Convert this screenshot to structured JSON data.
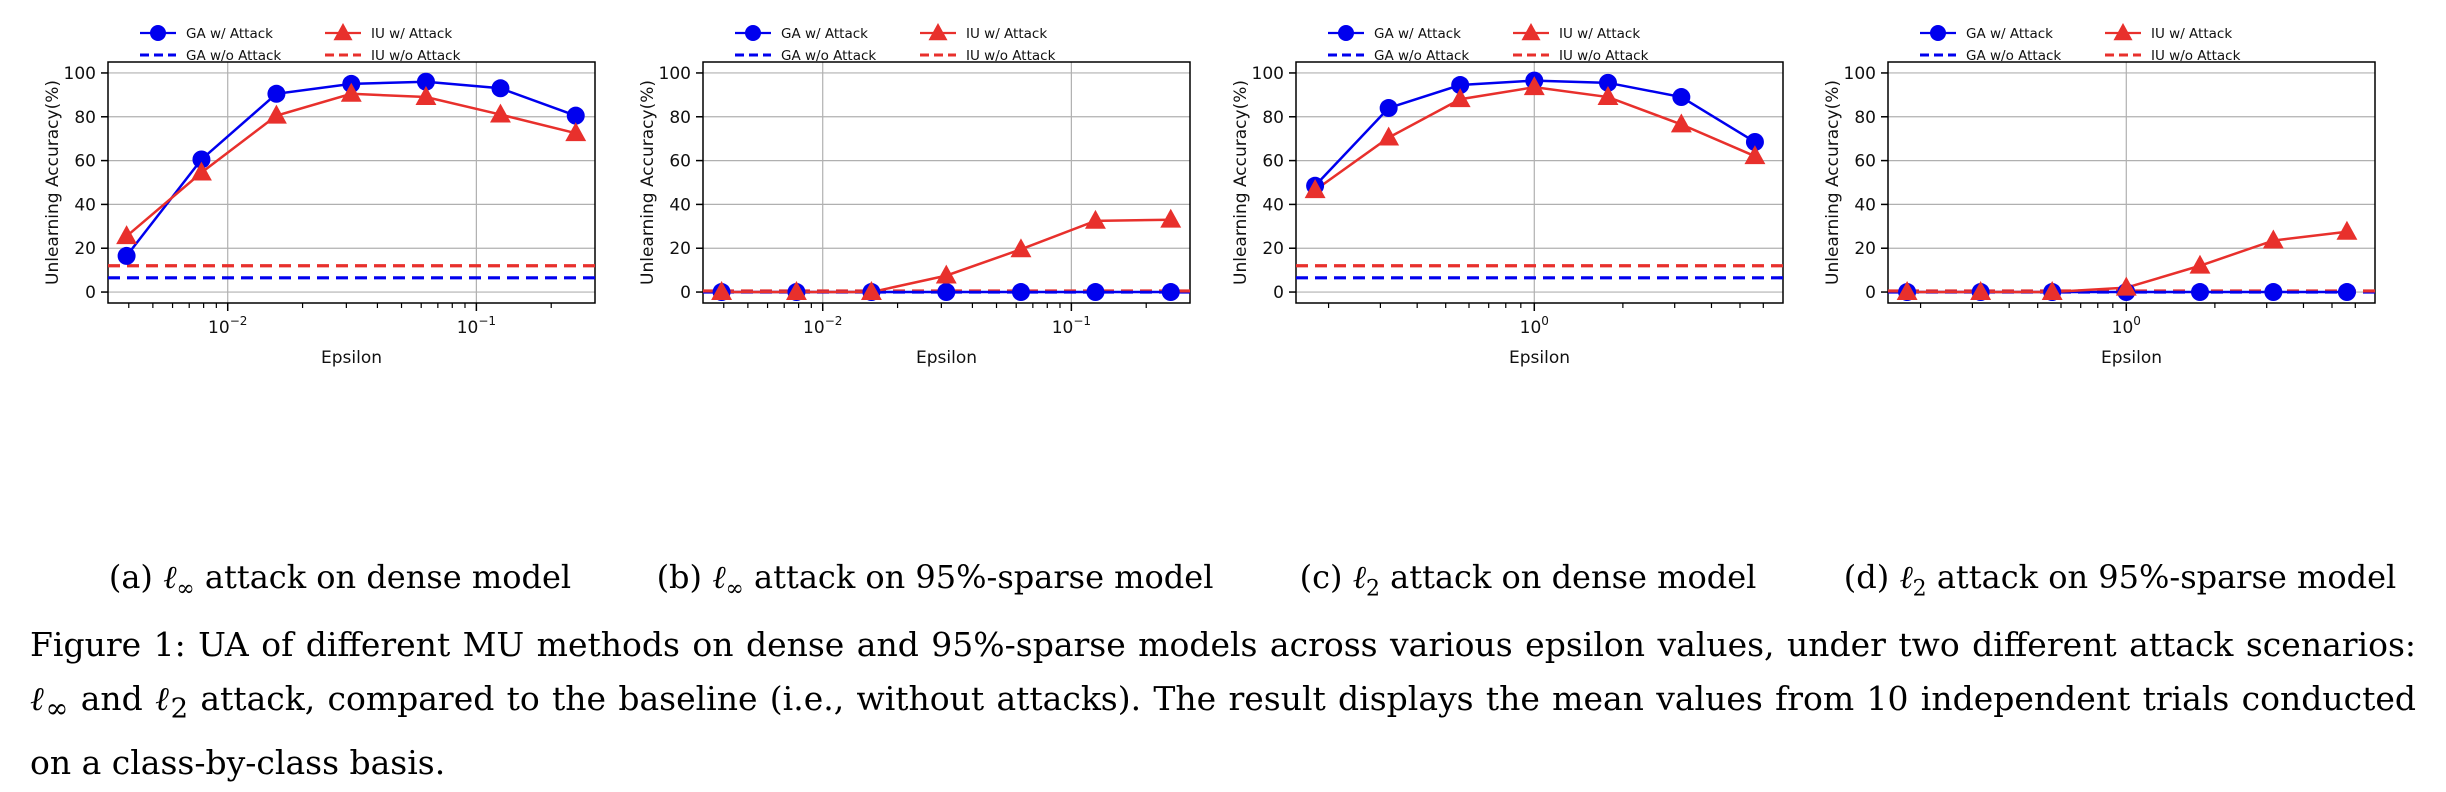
{
  "colors": {
    "ga": "#0000ee",
    "iu": "#e8302c",
    "grid": "#b0b0b0",
    "axis": "#000000"
  },
  "chart_data": [
    {
      "type": "line",
      "xscale": "log",
      "xlabel": "Epsilon",
      "ylabel": "Unlearning Accuracy(%)",
      "ylim": [
        -5,
        105
      ],
      "yticks": [
        0,
        20,
        40,
        60,
        80,
        100
      ],
      "xlim": [
        0.0033,
        0.3
      ],
      "xticks": [
        {
          "value": 0.01,
          "base": "10",
          "exp": "−2"
        },
        {
          "value": 0.1,
          "base": "10",
          "exp": "−1"
        }
      ],
      "x": [
        0.00392,
        0.00784,
        0.0157,
        0.0314,
        0.0627,
        0.125,
        0.251
      ],
      "series": [
        {
          "name": "GA w/ Attack",
          "values": [
            16.5,
            60.5,
            90.5,
            95,
            96,
            93,
            80.5
          ]
        },
        {
          "name": "IU w/ Attack",
          "values": [
            25.5,
            54.5,
            80.5,
            90.5,
            89,
            81,
            72.5
          ]
        }
      ],
      "baselines": [
        {
          "name": "GA w/o Attack",
          "value": 6.5
        },
        {
          "name": "IU w/o Attack",
          "value": 12
        }
      ],
      "legend": "top-center",
      "grid": true,
      "caption": {
        "label": "(a)",
        "norm": "ℓ",
        "sub": "∞",
        "rest": " attack on dense model"
      }
    },
    {
      "type": "line",
      "xscale": "log",
      "xlabel": "Epsilon",
      "ylabel": "Unlearning Accuracy(%)",
      "ylim": [
        -5,
        105
      ],
      "yticks": [
        0,
        20,
        40,
        60,
        80,
        100
      ],
      "xlim": [
        0.0033,
        0.3
      ],
      "xticks": [
        {
          "value": 0.01,
          "base": "10",
          "exp": "−2"
        },
        {
          "value": 0.1,
          "base": "10",
          "exp": "−1"
        }
      ],
      "x": [
        0.00392,
        0.00784,
        0.0157,
        0.0314,
        0.0627,
        0.125,
        0.251
      ],
      "series": [
        {
          "name": "GA w/ Attack",
          "values": [
            0,
            0,
            0,
            0,
            0,
            0,
            0
          ]
        },
        {
          "name": "IU w/ Attack",
          "values": [
            0,
            0,
            0,
            7.5,
            19.5,
            32.5,
            33
          ]
        }
      ],
      "baselines": [
        {
          "name": "GA w/o Attack",
          "value": 0
        },
        {
          "name": "IU w/o Attack",
          "value": 0.5
        }
      ],
      "legend": "top-center",
      "grid": true,
      "caption": {
        "label": "(b)",
        "norm": "ℓ",
        "sub": "∞",
        "rest": " attack on 95%-sparse model"
      }
    },
    {
      "type": "line",
      "xscale": "log",
      "xlabel": "Epsilon",
      "ylabel": "Unlearning Accuracy(%)",
      "ylim": [
        -5,
        105
      ],
      "yticks": [
        0,
        20,
        40,
        60,
        80,
        100
      ],
      "xlim": [
        0.155,
        7.0
      ],
      "xticks": [
        {
          "value": 1,
          "base": "10",
          "exp": "0"
        }
      ],
      "x": [
        0.18,
        0.32,
        0.56,
        1.0,
        1.78,
        3.16,
        5.62
      ],
      "series": [
        {
          "name": "GA w/ Attack",
          "values": [
            48.5,
            84,
            94.5,
            96.5,
            95.5,
            89,
            68.5
          ]
        },
        {
          "name": "IU w/ Attack",
          "values": [
            46.5,
            70.5,
            88,
            93.5,
            89,
            76.5,
            62
          ]
        }
      ],
      "baselines": [
        {
          "name": "GA w/o Attack",
          "value": 6.5
        },
        {
          "name": "IU w/o Attack",
          "value": 12
        }
      ],
      "legend": "top-center",
      "grid": true,
      "caption": {
        "label": "(c)",
        "norm": "ℓ",
        "sub": "2",
        "rest": " attack on dense model"
      }
    },
    {
      "type": "line",
      "xscale": "log",
      "xlabel": "Epsilon",
      "ylabel": "Unlearning Accuracy(%)",
      "ylim": [
        -5,
        105
      ],
      "yticks": [
        0,
        20,
        40,
        60,
        80,
        100
      ],
      "xlim": [
        0.155,
        7.0
      ],
      "xticks": [
        {
          "value": 1,
          "base": "10",
          "exp": "0"
        }
      ],
      "x": [
        0.18,
        0.32,
        0.56,
        1.0,
        1.78,
        3.16,
        5.62
      ],
      "series": [
        {
          "name": "GA w/ Attack",
          "values": [
            0,
            0,
            0,
            0,
            0,
            0,
            0
          ]
        },
        {
          "name": "IU w/ Attack",
          "values": [
            0,
            0,
            0,
            2,
            12,
            23.5,
            27.5
          ]
        }
      ],
      "baselines": [
        {
          "name": "GA w/o Attack",
          "value": 0
        },
        {
          "name": "IU w/o Attack",
          "value": 0.5
        }
      ],
      "legend": "top-center",
      "grid": true,
      "caption": {
        "label": "(d)",
        "norm": "ℓ",
        "sub": "2",
        "rest": " attack on 95%-sparse model"
      }
    }
  ],
  "figure_caption": {
    "p1": "Figure 1: UA of different MU methods on dense and 95%-sparse models across various epsilon values, under two different attack scenarios: ",
    "n1": "ℓ",
    "s1": "∞",
    "p2": " and ",
    "n2": "ℓ",
    "s2": "2",
    "p3": " attack, compared to the baseline (i.e., without attacks). The result displays the mean values from 10 independent trials conducted on a class-by-class basis."
  }
}
